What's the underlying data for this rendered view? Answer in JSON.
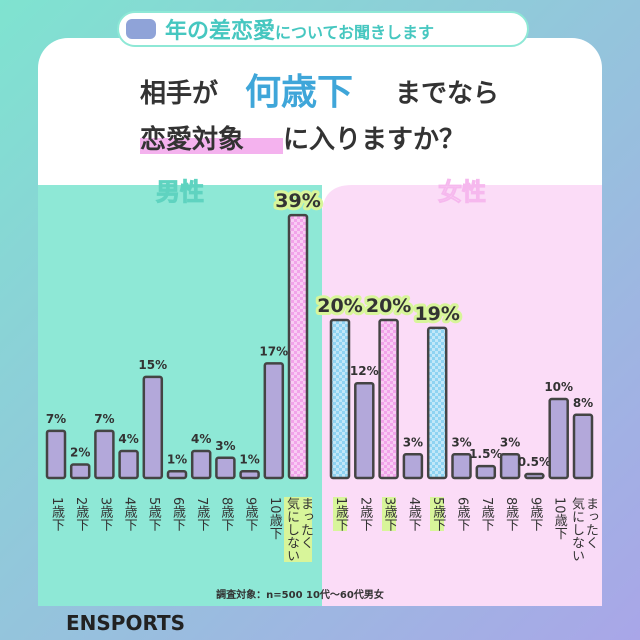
{
  "header": {
    "title_main": "年の差恋愛",
    "title_rest": "についてお聞きします"
  },
  "question": {
    "line1_pre": "相手が",
    "line1_emph": "何歳下",
    "line1_post": "までなら",
    "line2_mark": "恋愛対象",
    "line2_rest": "に入りますか？"
  },
  "chart_data": [
    {
      "type": "bar",
      "title": "男性",
      "categories": [
        "1歳下",
        "2歳下",
        "3歳下",
        "4歳下",
        "5歳下",
        "6歳下",
        "7歳下",
        "8歳下",
        "9歳下",
        "10歳下",
        "まったく\n気にしない"
      ],
      "values": [
        7,
        2,
        7,
        4,
        15,
        1,
        4,
        3,
        1,
        17,
        39
      ],
      "value_labels": [
        "7%",
        "2%",
        "7%",
        "4%",
        "15%",
        "1%",
        "4%",
        "3%",
        "1%",
        "17%",
        "39%"
      ],
      "colors": [
        "#b3a8da",
        "#b3a8da",
        "#b3a8da",
        "#b3a8da",
        "#b3a8da",
        "#b3a8da",
        "#b3a8da",
        "#b3a8da",
        "#b3a8da",
        "#b3a8da",
        "#f2a3ea"
      ],
      "highlighted": [
        10
      ]
    },
    {
      "type": "bar",
      "title": "女性",
      "categories": [
        "1歳下",
        "2歳下",
        "3歳下",
        "4歳下",
        "5歳下",
        "6歳下",
        "7歳下",
        "8歳下",
        "9歳下",
        "10歳下",
        "まったく\n気にしない"
      ],
      "values": [
        20,
        12,
        20,
        3,
        19,
        3,
        1.5,
        3,
        0.5,
        10,
        8
      ],
      "value_labels": [
        "20%",
        "12%",
        "20%",
        "3%",
        "19%",
        "3%",
        "1.5%",
        "3%",
        "0.5%",
        "10%",
        "8%"
      ],
      "colors": [
        "#8ed3f2",
        "#b3a8da",
        "#f2a3ea",
        "#b3a8da",
        "#8ed3f2",
        "#b3a8da",
        "#b3a8da",
        "#b3a8da",
        "#b3a8da",
        "#b3a8da",
        "#b3a8da"
      ],
      "highlighted": [
        0,
        2,
        4
      ]
    }
  ],
  "footnote": "調査対象：n=500 10代〜60代男女",
  "logo": "ENSPORTS"
}
